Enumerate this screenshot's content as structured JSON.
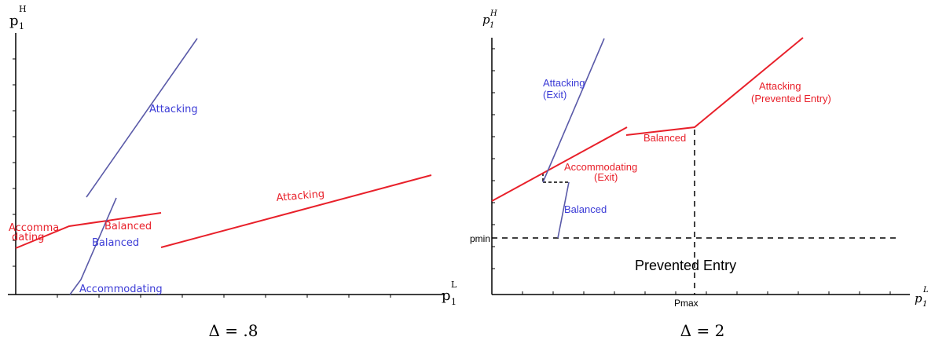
{
  "left_panel": {
    "caption": "Δ = .8",
    "y_axis": {
      "label": "p",
      "sub": "1",
      "sup": "H"
    },
    "x_axis": {
      "label": "p",
      "sub": "1",
      "sup": "L"
    },
    "labels": {
      "red_attacking": "Attacking",
      "red_accommodating_1": "Accomma",
      "red_accommodating_2": "dating",
      "red_balanced": "Balanced",
      "blue_attacking": "Attacking",
      "blue_balanced": "Balanced",
      "blue_accommodating": "Accommodating"
    },
    "colors": {
      "red": "#e8202a",
      "blue": "#3b3bd6"
    }
  },
  "right_panel": {
    "caption": "Δ = 2",
    "y_axis": {
      "label": "p",
      "sub": "1",
      "sup": "H"
    },
    "x_axis": {
      "label": "p",
      "sub": "1",
      "sup": "L"
    },
    "labels": {
      "blue_attacking_1": "Attacking",
      "blue_attacking_2": "(Exit)",
      "red_attacking_1": "Attacking",
      "red_attacking_2": "(Prevented Entry)",
      "red_balanced": "Balanced",
      "red_accommodating_1": "Accommodating",
      "red_accommodating_2": "(Exit)",
      "blue_balanced": "Balanced",
      "pmin": "pmin",
      "pmax": "Pmax",
      "prevented_entry": "Prevented Entry"
    },
    "colors": {
      "red": "#e8202a",
      "blue": "#3b3bd6"
    }
  }
}
